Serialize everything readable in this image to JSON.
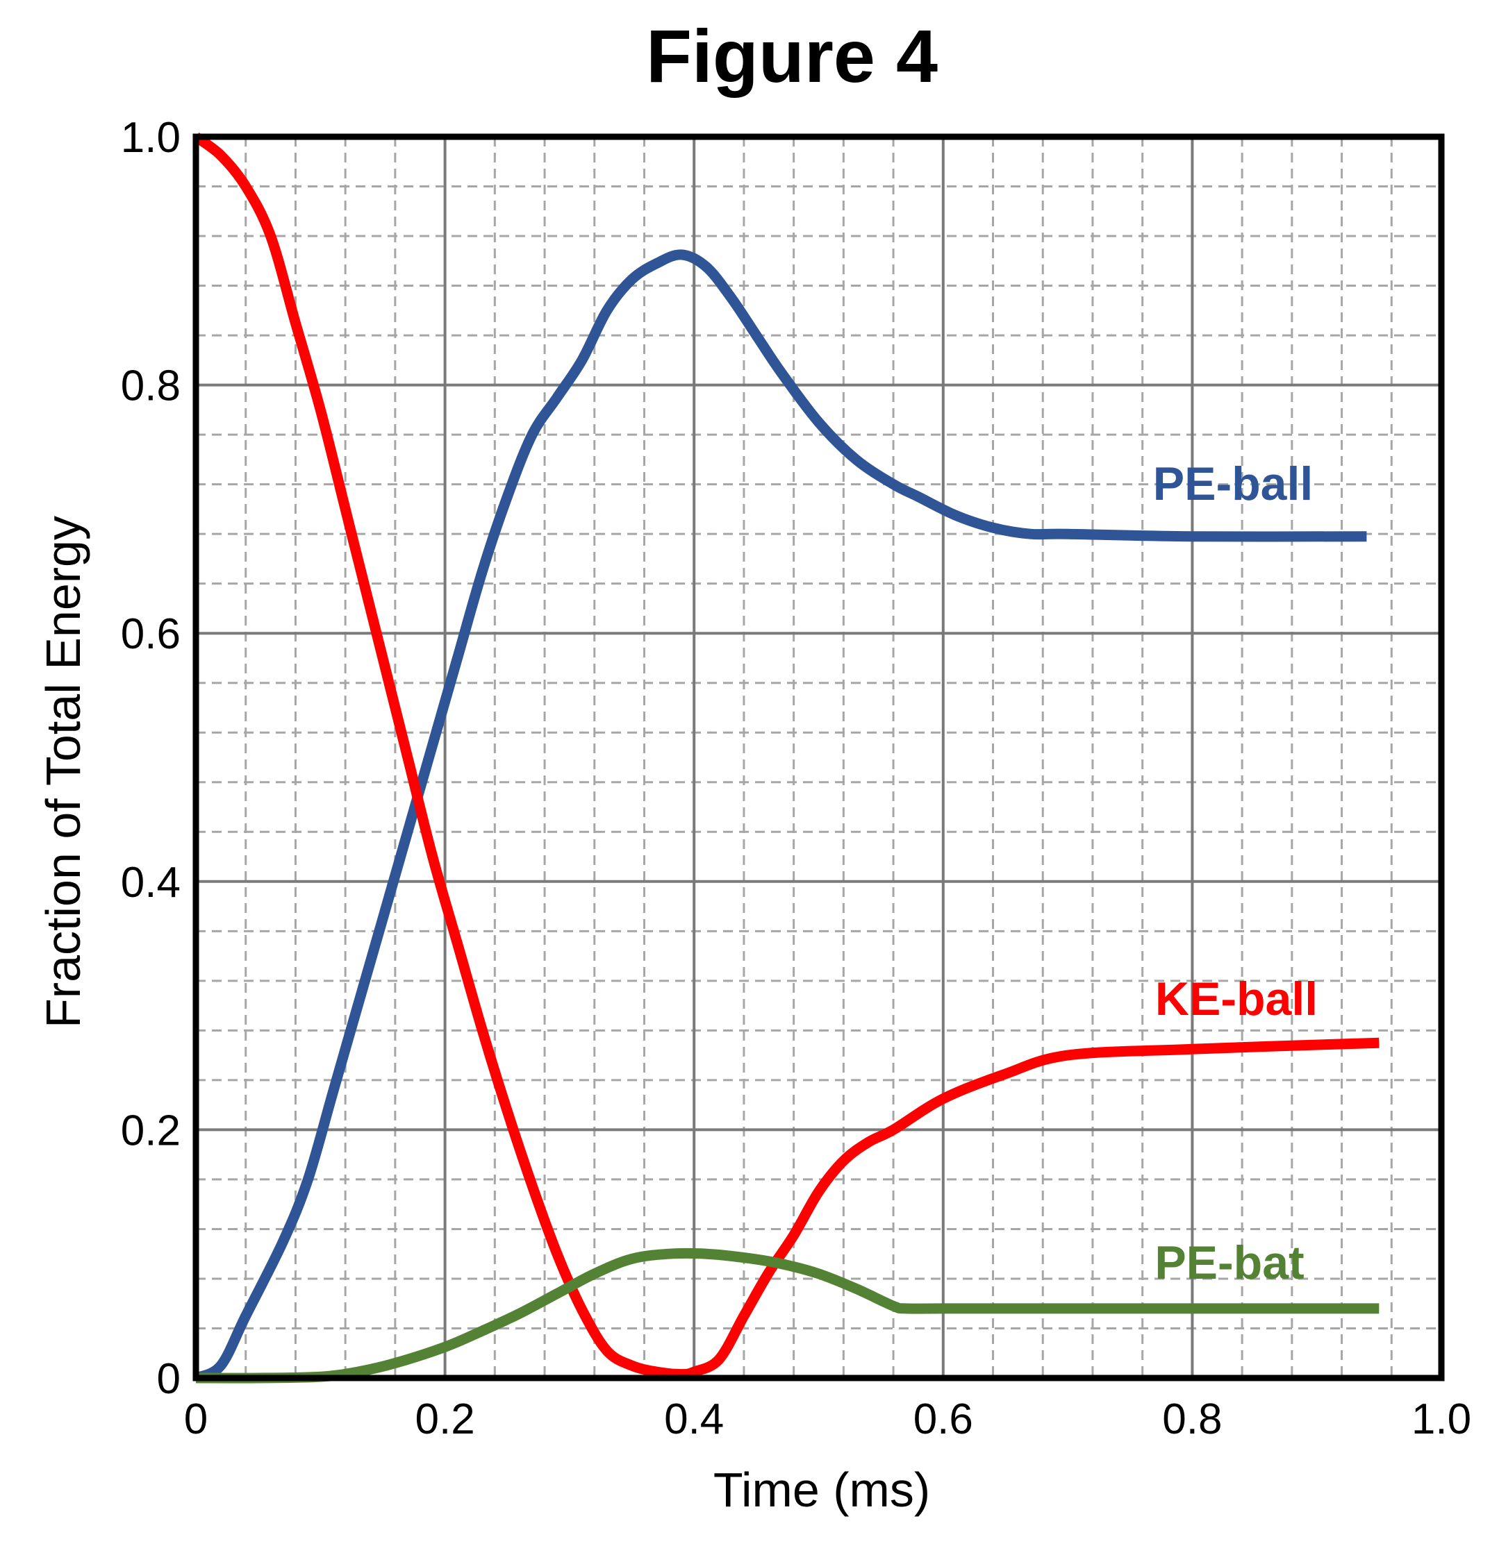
{
  "chart_data": {
    "type": "line",
    "title": "Figure 4",
    "xlabel": "Time (ms)",
    "ylabel": "Fraction of Total Energy",
    "xlim": [
      0,
      1.0
    ],
    "ylim": [
      0,
      1.0
    ],
    "x_ticks": [
      "0",
      "0.2",
      "0.4",
      "0.6",
      "0.8",
      "1.0"
    ],
    "y_ticks": [
      "0",
      "0.2",
      "0.4",
      "0.6",
      "0.8",
      "1.0"
    ],
    "grid": "major solid, minor dashed",
    "series": [
      {
        "name": "PE-ball",
        "color": "#2f5597",
        "x": [
          0,
          0.02,
          0.04,
          0.07,
          0.09,
          0.11,
          0.13,
          0.15,
          0.17,
          0.19,
          0.21,
          0.23,
          0.25,
          0.27,
          0.29,
          0.31,
          0.33,
          0.35,
          0.37,
          0.39,
          0.41,
          0.43,
          0.45,
          0.47,
          0.5,
          0.53,
          0.56,
          0.58,
          0.61,
          0.64,
          0.67,
          0.7,
          0.8,
          0.94
        ],
        "values": [
          0.0,
          0.01,
          0.05,
          0.11,
          0.16,
          0.23,
          0.3,
          0.37,
          0.44,
          0.51,
          0.58,
          0.65,
          0.71,
          0.76,
          0.79,
          0.82,
          0.86,
          0.885,
          0.898,
          0.905,
          0.895,
          0.87,
          0.84,
          0.81,
          0.77,
          0.74,
          0.72,
          0.71,
          0.695,
          0.685,
          0.68,
          0.68,
          0.678,
          0.678
        ]
      },
      {
        "name": "KE-ball",
        "color": "#ff0000",
        "x": [
          0,
          0.02,
          0.04,
          0.06,
          0.08,
          0.1,
          0.12,
          0.13,
          0.15,
          0.17,
          0.19,
          0.21,
          0.23,
          0.25,
          0.27,
          0.29,
          0.31,
          0.33,
          0.35,
          0.37,
          0.39,
          0.4,
          0.42,
          0.44,
          0.46,
          0.48,
          0.5,
          0.52,
          0.54,
          0.56,
          0.6,
          0.65,
          0.7,
          0.8,
          0.95
        ],
        "values": [
          1.0,
          0.985,
          0.96,
          0.92,
          0.85,
          0.78,
          0.7,
          0.66,
          0.58,
          0.5,
          0.42,
          0.35,
          0.28,
          0.215,
          0.155,
          0.1,
          0.055,
          0.022,
          0.01,
          0.005,
          0.003,
          0.005,
          0.015,
          0.05,
          0.085,
          0.115,
          0.15,
          0.175,
          0.19,
          0.2,
          0.225,
          0.245,
          0.26,
          0.265,
          0.27
        ]
      },
      {
        "name": "PE-bat",
        "color": "#548235",
        "x": [
          0,
          0.05,
          0.1,
          0.13,
          0.16,
          0.2,
          0.23,
          0.26,
          0.29,
          0.32,
          0.35,
          0.38,
          0.41,
          0.44,
          0.47,
          0.5,
          0.53,
          0.56,
          0.57,
          0.6,
          0.7,
          0.8,
          0.95
        ],
        "values": [
          0.0,
          0.0,
          0.001,
          0.005,
          0.012,
          0.025,
          0.038,
          0.052,
          0.068,
          0.084,
          0.096,
          0.1,
          0.1,
          0.097,
          0.092,
          0.084,
          0.072,
          0.058,
          0.056,
          0.056,
          0.056,
          0.056,
          0.056
        ]
      }
    ]
  }
}
